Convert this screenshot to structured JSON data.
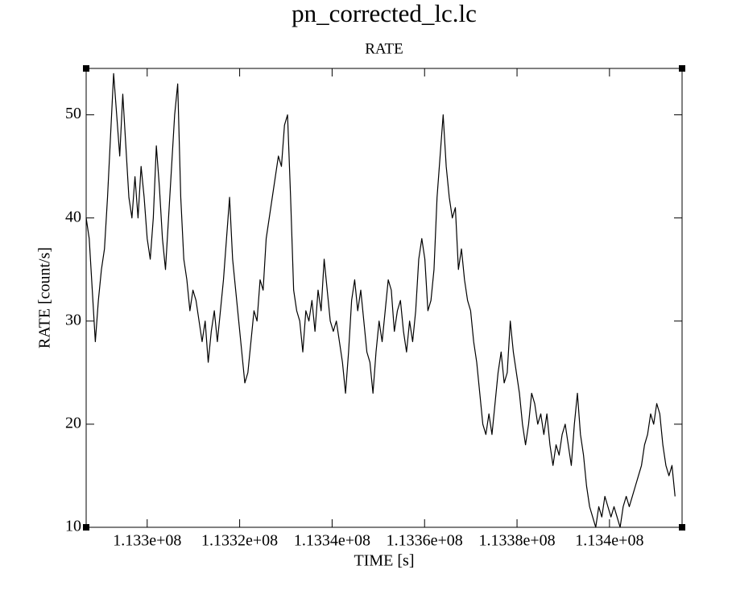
{
  "chart_data": {
    "type": "line",
    "title": "pn_corrected_lc.lc",
    "subtitle": "RATE",
    "x_label": "TIME [s]",
    "y_label": "RATE [count/s]",
    "xlim": [
      113286800,
      113415700
    ],
    "ylim": [
      10,
      54.5
    ],
    "xticks": [
      {
        "value": 113300000,
        "label": "1.133e+08"
      },
      {
        "value": 113320000,
        "label": "1.1332e+08"
      },
      {
        "value": 113340000,
        "label": "1.1334e+08"
      },
      {
        "value": 113360000,
        "label": "1.1336e+08"
      },
      {
        "value": 113380000,
        "label": "1.1338e+08"
      },
      {
        "value": 113400000,
        "label": "1.134e+08"
      }
    ],
    "yticks": [
      10,
      20,
      30,
      40,
      50
    ],
    "grid": false,
    "series": [
      {
        "name": "RATE",
        "color": "#000000",
        "x": [
          113286800,
          113287460,
          113288120,
          113288780,
          113289440,
          113290100,
          113290760,
          113291420,
          113292080,
          113292740,
          113293400,
          113294060,
          113294720,
          113295380,
          113296040,
          113296700,
          113297360,
          113298020,
          113298680,
          113299340,
          113300000,
          113300660,
          113301320,
          113301980,
          113302640,
          113303300,
          113303960,
          113304620,
          113305280,
          113305940,
          113306600,
          113307260,
          113307920,
          113308580,
          113309240,
          113309900,
          113310560,
          113311220,
          113311880,
          113312540,
          113313200,
          113313860,
          113314520,
          113315180,
          113315840,
          113316500,
          113317160,
          113317820,
          113318480,
          113319140,
          113319800,
          113320460,
          113321120,
          113321780,
          113322440,
          113323100,
          113323760,
          113324420,
          113325080,
          113325740,
          113326400,
          113327060,
          113327720,
          113328380,
          113329040,
          113329700,
          113330360,
          113331020,
          113331680,
          113332340,
          113333000,
          113333660,
          113334320,
          113334980,
          113335640,
          113336300,
          113336960,
          113337620,
          113338280,
          113338940,
          113339600,
          113340260,
          113340920,
          113341580,
          113342240,
          113342900,
          113343560,
          113344220,
          113344880,
          113345540,
          113346200,
          113346860,
          113347520,
          113348180,
          113348840,
          113349500,
          113350160,
          113350820,
          113351480,
          113352140,
          113352800,
          113353460,
          113354120,
          113354780,
          113355440,
          113356100,
          113356760,
          113357420,
          113358080,
          113358740,
          113359400,
          113360060,
          113360720,
          113361380,
          113362040,
          113362700,
          113363360,
          113364020,
          113364680,
          113365340,
          113366000,
          113366660,
          113367320,
          113367980,
          113368640,
          113369300,
          113369960,
          113370620,
          113371280,
          113371940,
          113372600,
          113373260,
          113373920,
          113374580,
          113375240,
          113375900,
          113376560,
          113377220,
          113377880,
          113378540,
          113379200,
          113379860,
          113380520,
          113381180,
          113381840,
          113382500,
          113383160,
          113383820,
          113384480,
          113385140,
          113385800,
          113386460,
          113387120,
          113387780,
          113388440,
          113389100,
          113389760,
          113390420,
          113391080,
          113391740,
          113392400,
          113393060,
          113393720,
          113394380,
          113395040,
          113395700,
          113396360,
          113397020,
          113397680,
          113398340,
          113399000,
          113399660,
          113400320,
          113400980,
          113401640,
          113402300,
          113402960,
          113403620,
          113404280,
          113404940,
          113405600,
          113406260,
          113406920,
          113407580,
          113408240,
          113408900,
          113409560,
          113410220,
          113410880,
          113411540,
          113412200,
          113412860,
          113413520,
          113414180
        ],
        "values": [
          40,
          38,
          33,
          28,
          32,
          35,
          37,
          42,
          48,
          54,
          50,
          46,
          52,
          47,
          42,
          40,
          44,
          40,
          45,
          42,
          38,
          36,
          40,
          47,
          43,
          38,
          35,
          40,
          45,
          50,
          53,
          42,
          36,
          34,
          31,
          33,
          32,
          30,
          28,
          30,
          26,
          29,
          31,
          28,
          31,
          34,
          38,
          42,
          36,
          33,
          30,
          27,
          24,
          25,
          28,
          31,
          30,
          34,
          33,
          38,
          40,
          42,
          44,
          46,
          45,
          49,
          50,
          42,
          33,
          31,
          30,
          27,
          31,
          30,
          32,
          29,
          33,
          31,
          36,
          33,
          30,
          29,
          30,
          28,
          26,
          23,
          27,
          32,
          34,
          31,
          33,
          30,
          27,
          26,
          23,
          27,
          30,
          28,
          31,
          34,
          33,
          29,
          31,
          32,
          29,
          27,
          30,
          28,
          31,
          36,
          38,
          36,
          31,
          32,
          35,
          42,
          46,
          50,
          45,
          42,
          40,
          41,
          35,
          37,
          34,
          32,
          31,
          28,
          26,
          23,
          20,
          19,
          21,
          19,
          22,
          25,
          27,
          24,
          25,
          30,
          27,
          25,
          23,
          20,
          18,
          20,
          23,
          22,
          20,
          21,
          19,
          21,
          18,
          16,
          18,
          17,
          19,
          20,
          18,
          16,
          20,
          23,
          19,
          17,
          14,
          12,
          11,
          10,
          12,
          11,
          13,
          12,
          11,
          12,
          11,
          10,
          12,
          13,
          12,
          13,
          14,
          15,
          16,
          18,
          19,
          21,
          20,
          22,
          21,
          18,
          16,
          15,
          16,
          13
        ]
      }
    ]
  }
}
